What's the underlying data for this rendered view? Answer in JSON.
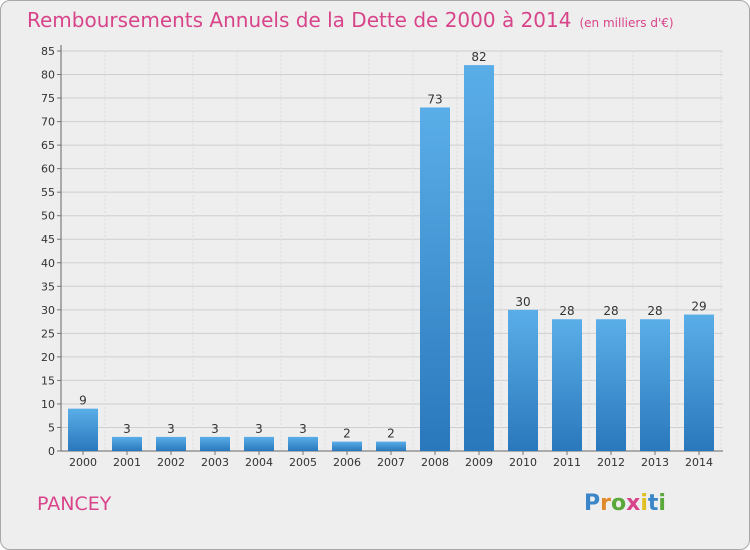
{
  "title": "Remboursements Annuels de la Dette de 2000 à 2014",
  "unit_label": "(en milliers d'€)",
  "commune": "PANCEY",
  "brand": {
    "letters": [
      "P",
      "r",
      "o",
      "x",
      "i",
      "t",
      "i"
    ],
    "colors": [
      "#3a86c8",
      "#e08a2c",
      "#5aa83a",
      "#d8448a",
      "#e0c020",
      "#3a86c8",
      "#5aa83a"
    ]
  },
  "colors": {
    "accent": "#d8448a",
    "bar_light": "#5aaee8",
    "bar_dark": "#2a78bc"
  },
  "chart_data": {
    "type": "bar",
    "categories": [
      "2000",
      "2001",
      "2002",
      "2003",
      "2004",
      "2005",
      "2006",
      "2007",
      "2008",
      "2009",
      "2010",
      "2011",
      "2012",
      "2013",
      "2014"
    ],
    "values": [
      9,
      3,
      3,
      3,
      3,
      3,
      2,
      2,
      73,
      82,
      30,
      28,
      28,
      28,
      29
    ],
    "ylim": [
      0,
      85
    ],
    "yticks": [
      0,
      5,
      10,
      15,
      20,
      25,
      30,
      35,
      40,
      45,
      50,
      55,
      60,
      65,
      70,
      75,
      80,
      85
    ],
    "grid": true,
    "data_labels": true
  }
}
